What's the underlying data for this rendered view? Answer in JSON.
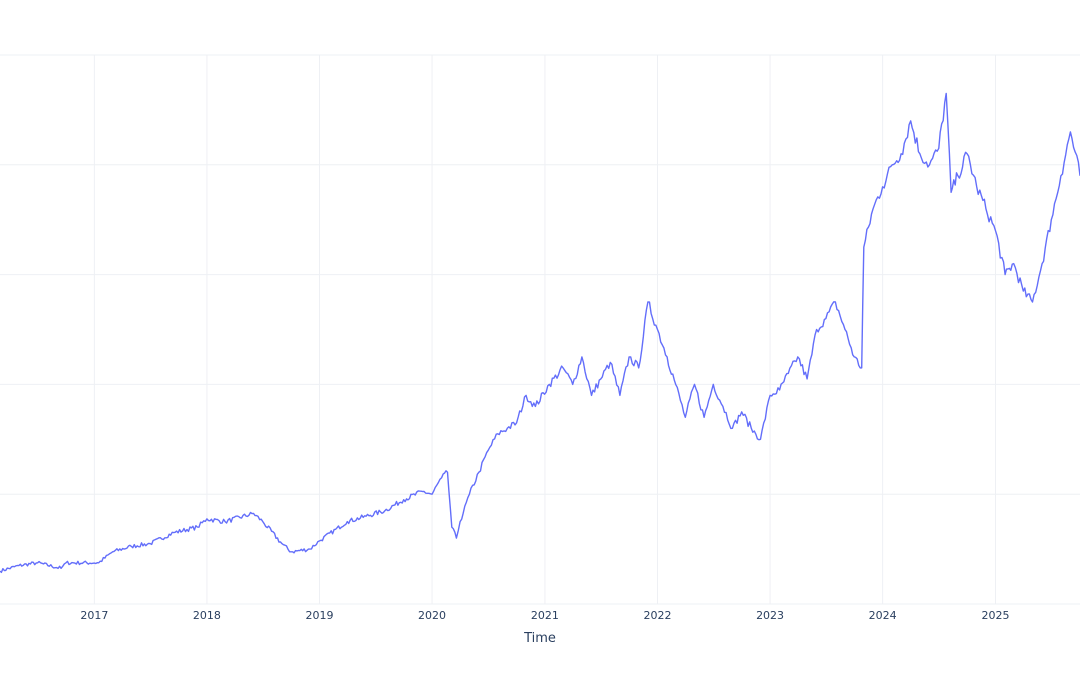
{
  "chart_data": {
    "type": "line",
    "title": "",
    "xlabel": "Time",
    "ylabel": "",
    "x_tick_labels": [
      "2017",
      "2018",
      "2019",
      "2020",
      "2021",
      "2022",
      "2023",
      "2024",
      "2025"
    ],
    "xlim": [
      "2016-03-01",
      "2025-10-02"
    ],
    "ylim": [
      0,
      100
    ],
    "grid": true,
    "legend": "none",
    "series": [
      {
        "color": "#636efa",
        "x": [
          "2016-03-01",
          "2016-05-01",
          "2016-07-01",
          "2016-09-15",
          "2016-10-01",
          "2017-01-15",
          "2017-03-01",
          "2017-05-01",
          "2017-07-01",
          "2017-09-15",
          "2017-12-01",
          "2018-01-01",
          "2018-03-01",
          "2018-06-01",
          "2018-07-01",
          "2018-09-01",
          "2018-10-01",
          "2018-12-01",
          "2019-01-01",
          "2019-04-01",
          "2019-06-01",
          "2019-08-01",
          "2019-10-01",
          "2019-12-01",
          "2020-01-01",
          "2020-02-01",
          "2020-02-20",
          "2020-03-05",
          "2020-03-20",
          "2020-04-01",
          "2020-05-01",
          "2020-06-01",
          "2020-07-01",
          "2020-08-01",
          "2020-09-01",
          "2020-10-01",
          "2020-11-01",
          "2020-12-01",
          "2021-01-15",
          "2021-03-01",
          "2021-04-01",
          "2021-05-01",
          "2021-06-01",
          "2021-07-01",
          "2021-08-01",
          "2021-09-01",
          "2021-10-01",
          "2021-11-01",
          "2021-12-01",
          "2022-01-01",
          "2022-02-01",
          "2022-03-01",
          "2022-04-01",
          "2022-05-01",
          "2022-06-01",
          "2022-07-01",
          "2022-08-01",
          "2022-09-01",
          "2022-10-01",
          "2022-11-01",
          "2022-12-01",
          "2023-01-01",
          "2023-02-01",
          "2023-03-01",
          "2023-04-01",
          "2023-05-01",
          "2023-06-01",
          "2023-07-01",
          "2023-08-01",
          "2023-09-01",
          "2023-10-01",
          "2023-10-25",
          "2023-11-01",
          "2023-12-01",
          "2024-01-01",
          "2024-02-01",
          "2024-03-01",
          "2024-04-01",
          "2024-05-01",
          "2024-06-01",
          "2024-07-01",
          "2024-07-25",
          "2024-08-10",
          "2024-09-01",
          "2024-10-01",
          "2024-11-01",
          "2024-12-01",
          "2025-01-01",
          "2025-02-01",
          "2025-03-01",
          "2025-04-01",
          "2025-05-01",
          "2025-06-01",
          "2025-07-01",
          "2025-08-01",
          "2025-09-01",
          "2025-10-02"
        ],
        "y": [
          6.0,
          7.0,
          7.5,
          6.5,
          7.5,
          7.5,
          9.5,
          10.5,
          11.0,
          13.0,
          14.0,
          15.5,
          15.0,
          16.5,
          15.0,
          11.0,
          9.5,
          10.0,
          11.5,
          15.0,
          16.0,
          17.0,
          19.0,
          20.5,
          20.0,
          23.0,
          24.0,
          14.0,
          12.0,
          15.0,
          20.0,
          24.0,
          28.0,
          31.0,
          32.0,
          33.0,
          38.0,
          36.0,
          40.0,
          43.0,
          40.0,
          45.0,
          38.0,
          41.0,
          44.0,
          38.0,
          45.0,
          43.0,
          55.0,
          50.0,
          45.0,
          40.0,
          34.0,
          40.0,
          34.0,
          40.0,
          36.0,
          32.0,
          35.0,
          32.0,
          30.0,
          38.0,
          39.0,
          42.0,
          45.0,
          41.0,
          50.0,
          52.0,
          55.0,
          50.0,
          45.0,
          43.0,
          65.0,
          72.0,
          76.0,
          80.0,
          82.0,
          88.0,
          82.0,
          80.0,
          83.0,
          93.0,
          75.0,
          78.0,
          82.0,
          76.0,
          72.0,
          68.0,
          60.0,
          62.0,
          57.0,
          55.0,
          62.0,
          70.0,
          78.0,
          86.0,
          78.0
        ]
      }
    ]
  }
}
